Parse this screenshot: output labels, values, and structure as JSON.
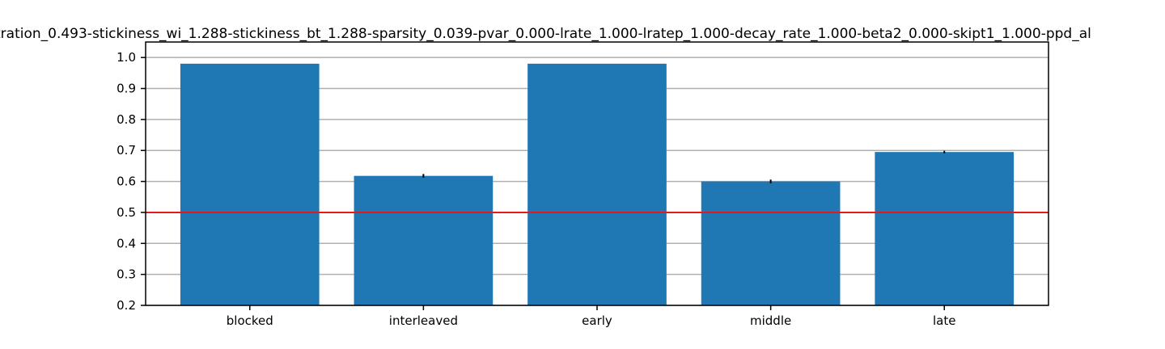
{
  "chart_data": {
    "type": "bar",
    "title": "tration_0.493-stickiness_wi_1.288-stickiness_bt_1.288-sparsity_0.039-pvar_0.000-lrate_1.000-lratep_1.000-decay_rate_1.000-beta2_0.000-skipt1_1.000-ppd_al",
    "xlabel": "",
    "ylabel": "",
    "categories": [
      "blocked",
      "interleaved",
      "early",
      "middle",
      "late"
    ],
    "values": [
      0.98,
      0.618,
      0.98,
      0.6,
      0.695
    ],
    "errors": [
      0.0,
      0.006,
      0.0,
      0.006,
      0.004
    ],
    "ylim": [
      0.2,
      1.05
    ],
    "yticks": [
      0.2,
      0.3,
      0.4,
      0.5,
      0.6,
      0.7,
      0.8,
      0.9,
      1.0
    ],
    "ytick_labels": [
      "0.2",
      "0.3",
      "0.4",
      "0.5",
      "0.6",
      "0.7",
      "0.8",
      "0.9",
      "1.0"
    ],
    "reference_line": {
      "y": 0.5,
      "color": "#e31a1c"
    },
    "grid": "horizontal",
    "legend": "none",
    "colors": {
      "bar": "#1f77b4",
      "grid": "#b0b0b0",
      "error": "#000000",
      "axis": "#000000"
    }
  }
}
